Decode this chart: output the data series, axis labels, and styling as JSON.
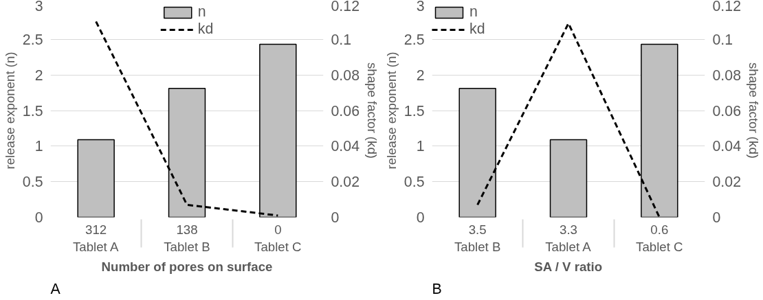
{
  "chart_data": [
    {
      "type": "bar",
      "xlabel": "Number of pores on surface",
      "ylabel": "release exponent (n)",
      "y2label": "shape factor (kd)",
      "categories": [
        "312\nTablet A",
        "138\nTablet B",
        "0\nTablet C"
      ],
      "series": [
        {
          "name": "n",
          "color": "#bfbfbf",
          "values": [
            1.09,
            1.81,
            2.43
          ]
        },
        {
          "name": "kd",
          "type": "line",
          "axis": "y2",
          "color": "#000000",
          "line_style": "dashed",
          "values": [
            0.11,
            0.007,
            0.001
          ]
        }
      ],
      "ylim": [
        0,
        3
      ],
      "yticks": [
        0,
        0.5,
        1,
        1.5,
        2,
        2.5,
        3
      ],
      "y2lim": [
        0,
        0.12
      ],
      "y2ticks": [
        0,
        0.02,
        0.04,
        0.06,
        0.08,
        0.1,
        0.12
      ],
      "grid": "y",
      "legend": "top",
      "annotations": [
        "A"
      ]
    },
    {
      "type": "bar",
      "xlabel": "SA / V ratio",
      "ylabel": "release exponent (n)",
      "y2label": "shape factor (kd)",
      "categories": [
        "3.5\nTablet B",
        "3.3\nTablet A",
        "0.6\nTablet C"
      ],
      "series": [
        {
          "name": "n",
          "color": "#bfbfbf",
          "values": [
            1.81,
            1.09,
            2.43
          ]
        },
        {
          "name": "kd",
          "type": "line",
          "axis": "y2",
          "color": "#000000",
          "line_style": "dashed",
          "values": [
            0.007,
            0.109,
            0.0
          ]
        }
      ],
      "ylim": [
        0,
        3
      ],
      "yticks": [
        0,
        0.5,
        1,
        1.5,
        2,
        2.5,
        3
      ],
      "y2lim": [
        0,
        0.12
      ],
      "y2ticks": [
        0,
        0.02,
        0.04,
        0.06,
        0.08,
        0.1,
        0.12
      ],
      "grid": "y",
      "legend": "top left",
      "annotations": [
        "B"
      ]
    }
  ]
}
